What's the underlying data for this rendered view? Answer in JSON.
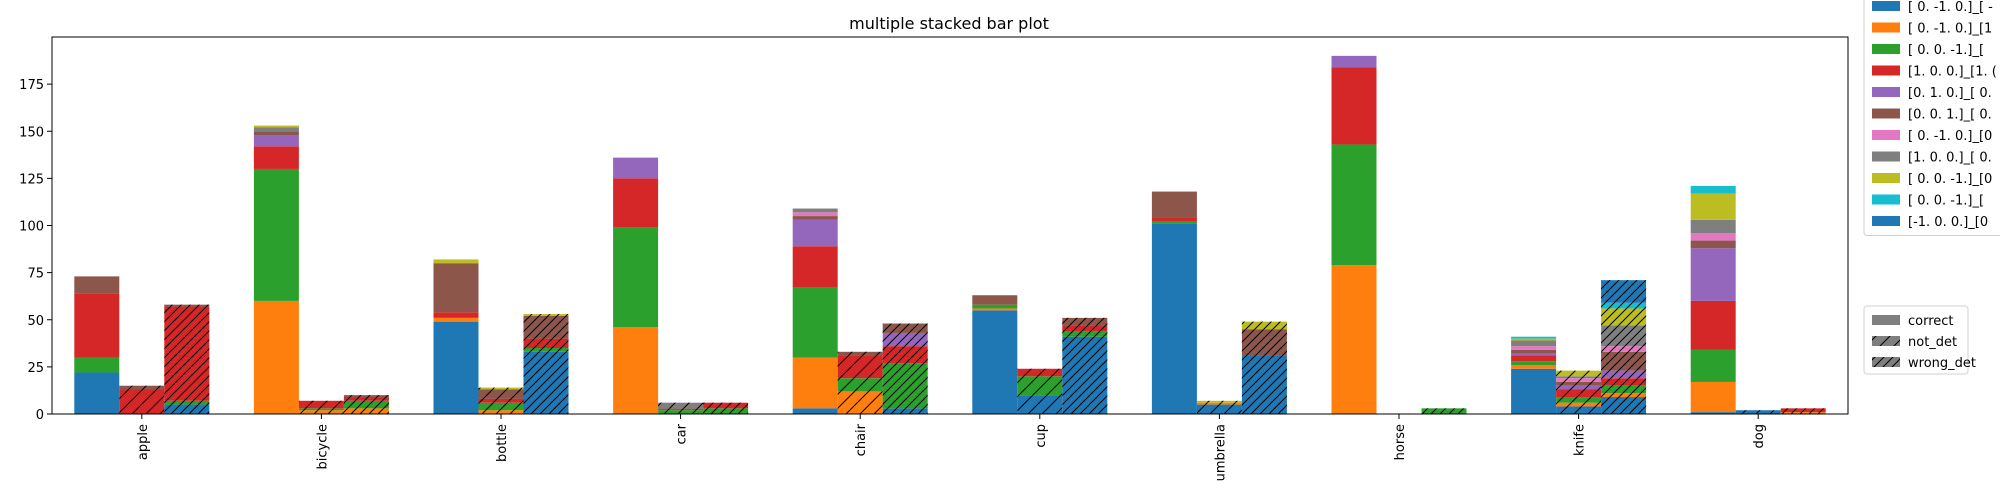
{
  "chart_data": {
    "type": "bar",
    "stacked": true,
    "title": "multiple stacked bar plot",
    "xlabel": "",
    "ylabel": "",
    "ylim": [
      0,
      200
    ],
    "yticks": [
      0,
      25,
      50,
      75,
      100,
      125,
      150,
      175
    ],
    "grid": false,
    "categories": [
      "apple",
      "bicycle",
      "bottle",
      "car",
      "chair",
      "cup",
      "umbrella",
      "horse",
      "knife",
      "dog"
    ],
    "groups": [
      "correct",
      "not_det",
      "wrong_det"
    ],
    "group_hatch": {
      "correct": "none",
      "not_det": "/",
      "wrong_det": "//"
    },
    "series": [
      {
        "name": "[ 0. -1.  0.]_[ -",
        "color": "#1f77b4"
      },
      {
        "name": "[ 0. -1.  0.]_[1",
        "color": "#ff7f0e"
      },
      {
        "name": "[ 0.  0. -1.]_[ ",
        "color": "#2ca02c"
      },
      {
        "name": "[1. 0. 0.]_[1. (",
        "color": "#d62728"
      },
      {
        "name": "[0. 1. 0.]_[ 0.",
        "color": "#9467bd"
      },
      {
        "name": "[0. 0. 1.]_[ 0.",
        "color": "#8c564b"
      },
      {
        "name": "[ 0. -1.  0.]_[0",
        "color": "#e377c2"
      },
      {
        "name": "[1. 0. 0.]_[ 0.",
        "color": "#7f7f7f"
      },
      {
        "name": "[ 0.  0. -1.]_[0",
        "color": "#bcbd22"
      },
      {
        "name": "[ 0.  0. -1.]_[ ",
        "color": "#17becf"
      },
      {
        "name": "[-1.  0.  0.]_[0",
        "color": "#1f77b4"
      }
    ],
    "values": {
      "apple": {
        "correct": [
          22,
          0,
          8,
          34,
          0,
          9,
          0,
          0,
          0,
          0,
          0
        ],
        "not_det": [
          0,
          0,
          0,
          13,
          0,
          2,
          0,
          0,
          0,
          0,
          0
        ],
        "wrong_det": [
          5,
          0,
          2,
          50,
          0,
          1,
          0,
          0,
          0,
          0,
          0
        ]
      },
      "bicycle": {
        "correct": [
          0,
          60,
          70,
          12,
          6,
          2,
          0,
          2,
          1,
          0,
          0
        ],
        "not_det": [
          0,
          2,
          1,
          4,
          0,
          0,
          0,
          0,
          0,
          0,
          0
        ],
        "wrong_det": [
          0,
          3,
          4,
          2,
          0,
          1,
          0,
          0,
          0,
          0,
          0
        ]
      },
      "bottle": {
        "correct": [
          49,
          2,
          0,
          3,
          0,
          26,
          0,
          0,
          2,
          0,
          0
        ],
        "not_det": [
          0,
          2,
          4,
          2,
          0,
          5,
          0,
          0,
          1,
          0,
          0
        ],
        "wrong_det": [
          33,
          0,
          2,
          5,
          0,
          12,
          0,
          0,
          1,
          0,
          0
        ]
      },
      "car": {
        "correct": [
          0,
          46,
          53,
          26,
          11,
          0,
          0,
          0,
          0,
          0,
          0
        ],
        "not_det": [
          0,
          0,
          2,
          0,
          0,
          1,
          0,
          3,
          0,
          0,
          0
        ],
        "wrong_det": [
          0,
          0,
          3,
          3,
          0,
          0,
          0,
          0,
          0,
          0,
          0
        ]
      },
      "chair": {
        "correct": [
          3,
          27,
          37,
          22,
          14,
          2,
          2,
          2,
          0,
          0,
          0
        ],
        "not_det": [
          0,
          12,
          7,
          12,
          0,
          2,
          0,
          0,
          0,
          0,
          0
        ],
        "wrong_det": [
          3,
          0,
          24,
          9,
          7,
          5,
          0,
          0,
          0,
          0,
          0
        ]
      },
      "cup": {
        "correct": [
          55,
          1,
          2,
          0,
          0,
          5,
          0,
          0,
          0,
          0,
          0
        ],
        "not_det": [
          10,
          0,
          10,
          4,
          0,
          0,
          0,
          0,
          0,
          0,
          0
        ],
        "wrong_det": [
          41,
          0,
          3,
          3,
          0,
          4,
          0,
          0,
          0,
          0,
          0
        ]
      },
      "umbrella": {
        "correct": [
          101,
          0,
          1,
          2,
          0,
          14,
          0,
          0,
          0,
          0,
          0
        ],
        "not_det": [
          5,
          1,
          0,
          0,
          0,
          0,
          0,
          0,
          1,
          0,
          0
        ],
        "wrong_det": [
          31,
          0,
          0,
          0,
          0,
          14,
          0,
          0,
          4,
          0,
          0
        ]
      },
      "horse": {
        "correct": [
          0,
          79,
          64,
          41,
          6,
          0,
          0,
          0,
          0,
          0,
          0
        ],
        "not_det": [
          0,
          0,
          0,
          0,
          0,
          0,
          0,
          0,
          0,
          0,
          0
        ],
        "wrong_det": [
          0,
          0,
          3,
          0,
          0,
          0,
          0,
          0,
          0,
          0,
          0
        ]
      },
      "knife": {
        "correct": [
          24,
          2,
          2,
          3,
          1,
          2,
          2,
          3,
          1,
          1,
          0
        ],
        "not_det": [
          4,
          2,
          3,
          4,
          2,
          2,
          2,
          1,
          3,
          0,
          0
        ],
        "wrong_det": [
          9,
          2,
          4,
          4,
          4,
          10,
          3,
          11,
          9,
          3,
          12
        ]
      },
      "dog": {
        "correct": [
          1,
          16,
          17,
          26,
          28,
          4,
          4,
          7,
          14,
          4,
          0
        ],
        "not_det": [
          2,
          0,
          0,
          0,
          0,
          0,
          0,
          0,
          0,
          0,
          0
        ],
        "wrong_det": [
          0,
          1,
          0,
          2,
          0,
          0,
          0,
          0,
          0,
          0,
          0
        ]
      }
    },
    "legend_placement": "right, outside axes",
    "group_legend_placement": "lower right, outside axes"
  }
}
